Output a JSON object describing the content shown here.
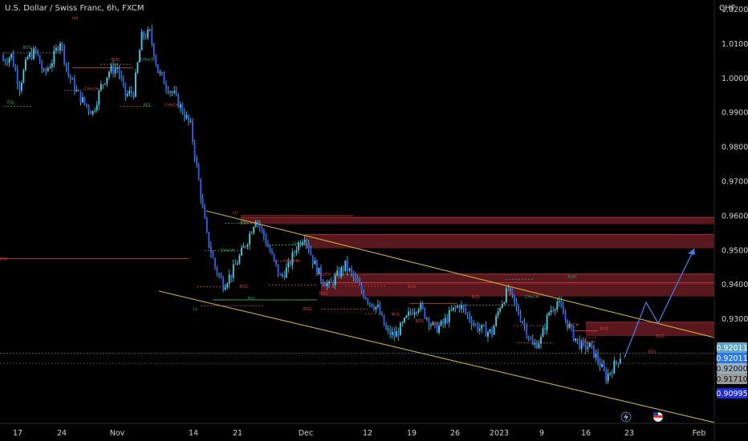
{
  "header": {
    "title": "U.S. Dollar / Swiss Franc, 6h, FXCM",
    "currency": "CHF"
  },
  "colors": {
    "background": "#000000",
    "candle": "#2962ff",
    "wick": "#4dd0e1",
    "channel": "#c9b23a",
    "zone": "#6e1e24",
    "zone_line": "#c2383d",
    "projection": "#3d7fe0",
    "label_green": "#2e9e6a",
    "label_red": "#d83a3a"
  },
  "chart_data": {
    "type": "candlestick",
    "ylim": [
      0.9045,
      1.023
    ],
    "y_ticks": [
      "1.02000",
      "1.01000",
      "1.00000",
      "0.99000",
      "0.98000",
      "0.97000",
      "0.96000",
      "0.95000",
      "0.94000",
      "0.93000"
    ],
    "y_tick_values": [
      1.02,
      1.01,
      1.0,
      0.99,
      0.98,
      0.97,
      0.96,
      0.95,
      0.94,
      0.93
    ],
    "x_ticks": [
      "17",
      "24",
      "Nov",
      "14",
      "21",
      "Dec",
      "12",
      "19",
      "26",
      "2023",
      "9",
      "16",
      "23",
      "Feb"
    ],
    "close_series": [
      1.005,
      1.0065,
      0.9975,
      1.006,
      1.0078,
      1.001,
      1.005,
      1.011,
      1.001,
      0.996,
      0.9925,
      0.99,
      0.9975,
      1.002,
      1.003,
      0.995,
      0.996,
      1.012,
      1.013,
      1.002,
      0.998,
      0.995,
      0.9905,
      0.986,
      0.97,
      0.954,
      0.945,
      0.94,
      0.943,
      0.948,
      0.953,
      0.9595,
      0.954,
      0.948,
      0.942,
      0.945,
      0.951,
      0.9545,
      0.947,
      0.942,
      0.9395,
      0.9425,
      0.9455,
      0.942,
      0.938,
      0.935,
      0.933,
      0.9265,
      0.925,
      0.928,
      0.932,
      0.934,
      0.9305,
      0.927,
      0.9285,
      0.932,
      0.934,
      0.931,
      0.928,
      0.9265,
      0.926,
      0.934,
      0.9385,
      0.933,
      0.928,
      0.922,
      0.924,
      0.932,
      0.935,
      0.93,
      0.925,
      0.922,
      0.922,
      0.918,
      0.913,
      0.9165,
      0.9201
    ],
    "price_labels": [
      {
        "text": "0.92011",
        "value": 0.92011,
        "bg": "#5fa7c8",
        "fg": "#ffffff"
      },
      {
        "text": "0.92011",
        "value": 0.92011,
        "bg": "#2a78e6",
        "fg": "#ffffff"
      },
      {
        "text": "0.92000",
        "value": 0.92,
        "bg": "#9aaebd",
        "fg": "#111111"
      },
      {
        "text": "0.91710",
        "value": 0.9171,
        "bg": "#9a9a9a",
        "fg": "#111111"
      },
      {
        "text": "0.90995",
        "value": 0.90995,
        "bg": "#1c2ad8",
        "fg": "#ffffff"
      }
    ],
    "zones": [
      [
        0.9575,
        0.9595
      ],
      [
        0.9505,
        0.9545
      ],
      [
        0.94,
        0.943
      ],
      [
        0.9365,
        0.9405
      ],
      [
        0.925,
        0.929
      ]
    ],
    "structure_labels": [
      {
        "text": "HH",
        "x_index": 9,
        "value": 1.017,
        "color": "#d83a3a"
      },
      {
        "text": "LH",
        "x_index": 29,
        "value": 0.9605,
        "color": "#d83a3a"
      },
      {
        "text": "LL",
        "x_index": 24,
        "value": 0.9325,
        "color": "#2e9e6a"
      },
      {
        "text": "BOS",
        "x_index": 3,
        "value": 1.0085,
        "color": "#2e9e6a"
      },
      {
        "text": "EQL",
        "x_index": 1,
        "value": 0.9925,
        "color": "#2e9e6a"
      },
      {
        "text": "BOS",
        "x_index": 14,
        "value": 1.005,
        "color": "#d83a3a"
      },
      {
        "text": "CHoCH",
        "x_index": 18,
        "value": 1.005,
        "color": "#2e9e6a"
      },
      {
        "text": "CHoCH",
        "x_index": 11,
        "value": 0.9965,
        "color": "#d83a3a"
      },
      {
        "text": "EQL",
        "x_index": 18,
        "value": 0.9918,
        "color": "#2e9e6a"
      },
      {
        "text": "CHoCH",
        "x_index": 21,
        "value": 0.9918,
        "color": "#d83a3a"
      },
      {
        "text": "BOS",
        "x_index": 30,
        "value": 0.9575,
        "color": "#2e9e6a"
      },
      {
        "text": "CHoCH",
        "x_index": 28,
        "value": 0.9495,
        "color": "#2e9e6a"
      },
      {
        "text": "CHoCH",
        "x_index": 37,
        "value": 0.9513,
        "color": "#2e9e6a"
      },
      {
        "text": "CHoCH",
        "x_index": 36,
        "value": 0.9465,
        "color": "#d83a3a"
      },
      {
        "text": "CHoCH",
        "x_index": 40,
        "value": 0.9425,
        "color": "#d83a3a"
      },
      {
        "text": "EQL",
        "x_index": 31,
        "value": 0.9355,
        "color": "#2e9e6a"
      },
      {
        "text": "BOS",
        "x_index": 30,
        "value": 0.939,
        "color": "#d83a3a"
      },
      {
        "text": "BOS",
        "x_index": 40,
        "value": 0.937,
        "color": "#d83a3a"
      },
      {
        "text": "BOS",
        "x_index": 38,
        "value": 0.9325,
        "color": "#d83a3a"
      },
      {
        "text": "BOS",
        "x_index": 49,
        "value": 0.931,
        "color": "#d83a3a"
      },
      {
        "text": "BOS",
        "x_index": 52,
        "value": 0.929,
        "color": "#d83a3a"
      },
      {
        "text": "BOS",
        "x_index": 51,
        "value": 0.939,
        "color": "#d83a3a"
      },
      {
        "text": "BOS",
        "x_index": 59,
        "value": 0.936,
        "color": "#d83a3a"
      },
      {
        "text": "CHoCH",
        "x_index": 66,
        "value": 0.936,
        "color": "#2e9e6a"
      },
      {
        "text": "EQH",
        "x_index": 71,
        "value": 0.9418,
        "color": "#2e9e6a"
      },
      {
        "text": "CHoCH",
        "x_index": 71,
        "value": 0.9278,
        "color": "#d83a3a"
      },
      {
        "text": "CHoCH",
        "x_index": 73,
        "value": 0.9228,
        "color": "#d83a3a"
      },
      {
        "text": "BOS",
        "x_index": 75,
        "value": 0.9268,
        "color": "#d83a3a"
      },
      {
        "text": "BOS",
        "x_index": 81,
        "value": 0.92,
        "color": "#d83a3a"
      },
      {
        "text": "BOS",
        "x_index": 82,
        "value": 0.9245,
        "color": "#d83a3a"
      },
      {
        "text": "BOS",
        "x_index": 0,
        "value": 0.947,
        "color": "#d83a3a"
      },
      {
        "text": "BOS",
        "x_index": 54,
        "value": 0.928,
        "color": "#d83a3a"
      }
    ]
  }
}
